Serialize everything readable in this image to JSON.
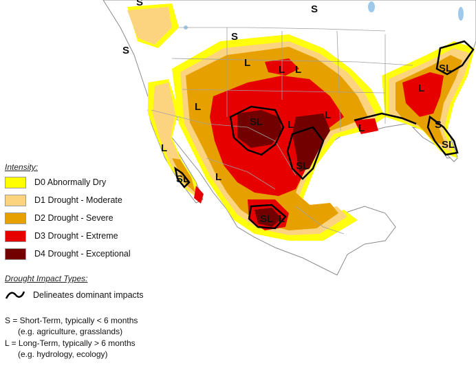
{
  "colors": {
    "water": "#ffffff",
    "land": "#ffffff",
    "border": "#8a8a8a",
    "state_border": "#a0a0a0",
    "lakes": "#9ec9ea",
    "impact_line": "#000000"
  },
  "legend": {
    "title": "Intensity:",
    "items": [
      {
        "label": "D0 Abnormally Dry",
        "color": "#ffff00"
      },
      {
        "label": "D1 Drought - Moderate",
        "color": "#fcd37f"
      },
      {
        "label": "D2 Drought - Severe",
        "color": "#e6a000"
      },
      {
        "label": "D3 Drought - Extreme",
        "color": "#e60000"
      },
      {
        "label": "D4 Drought - Exceptional",
        "color": "#730000"
      }
    ]
  },
  "impacts": {
    "title": "Drought Impact Types:",
    "line_label": "Delineates dominant impacts",
    "short_term": "S = Short-Term, typically < 6 months",
    "short_term_example": "(e.g. agriculture, grasslands)",
    "long_term": "L = Long-Term, typically > 6 months",
    "long_term_example": "(e.g. hydrology, ecology)"
  },
  "map_labels": [
    "S",
    "S",
    "S",
    "L",
    "L",
    "L",
    "SL",
    "L",
    "SL",
    "L",
    "L",
    "L",
    "SL",
    "L",
    "SL",
    "S",
    "SL",
    "L",
    "L",
    "SL",
    "L",
    "S"
  ]
}
